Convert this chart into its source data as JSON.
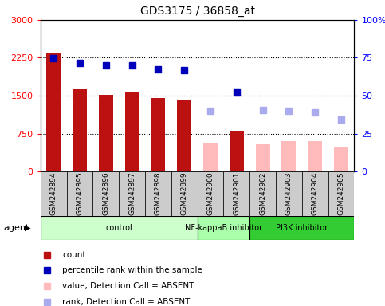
{
  "title": "GDS3175 / 36858_at",
  "samples": [
    "GSM242894",
    "GSM242895",
    "GSM242896",
    "GSM242897",
    "GSM242898",
    "GSM242899",
    "GSM242900",
    "GSM242901",
    "GSM242902",
    "GSM242903",
    "GSM242904",
    "GSM242905"
  ],
  "count_values": [
    2350,
    1620,
    1510,
    1560,
    1460,
    1420,
    null,
    800,
    null,
    null,
    null,
    null
  ],
  "count_absent": [
    null,
    null,
    null,
    null,
    null,
    null,
    560,
    null,
    530,
    600,
    600,
    470
  ],
  "rank_values": [
    2240,
    2150,
    2100,
    2100,
    2020,
    2000,
    null,
    1570,
    null,
    null,
    null,
    null
  ],
  "rank_absent": [
    null,
    null,
    null,
    null,
    null,
    null,
    1200,
    null,
    1220,
    1200,
    1170,
    1020
  ],
  "ylim_left": [
    0,
    3000
  ],
  "ylim_right": [
    0,
    100
  ],
  "yticks_left": [
    0,
    750,
    1500,
    2250,
    3000
  ],
  "ytick_labels_left": [
    "0",
    "750",
    "1500",
    "2250",
    "3000"
  ],
  "ytick_labels_right": [
    "0",
    "25",
    "50",
    "75",
    "100%"
  ],
  "groups": [
    {
      "label": "control",
      "start": 0,
      "end": 6,
      "color": "#ccffcc"
    },
    {
      "label": "NF-kappaB inhibitor",
      "start": 6,
      "end": 8,
      "color": "#aaffaa"
    },
    {
      "label": "PI3K inhibitor",
      "start": 8,
      "end": 12,
      "color": "#33cc33"
    }
  ],
  "bar_color_present": "#bb1111",
  "bar_color_absent": "#ffbbbb",
  "rank_color_present": "#0000bb",
  "rank_color_absent": "#aaaaee",
  "bar_width": 0.55,
  "legend_items": [
    {
      "label": "count",
      "color": "#bb1111"
    },
    {
      "label": "percentile rank within the sample",
      "color": "#0000bb"
    },
    {
      "label": "value, Detection Call = ABSENT",
      "color": "#ffbbbb"
    },
    {
      "label": "rank, Detection Call = ABSENT",
      "color": "#aaaaee"
    }
  ]
}
